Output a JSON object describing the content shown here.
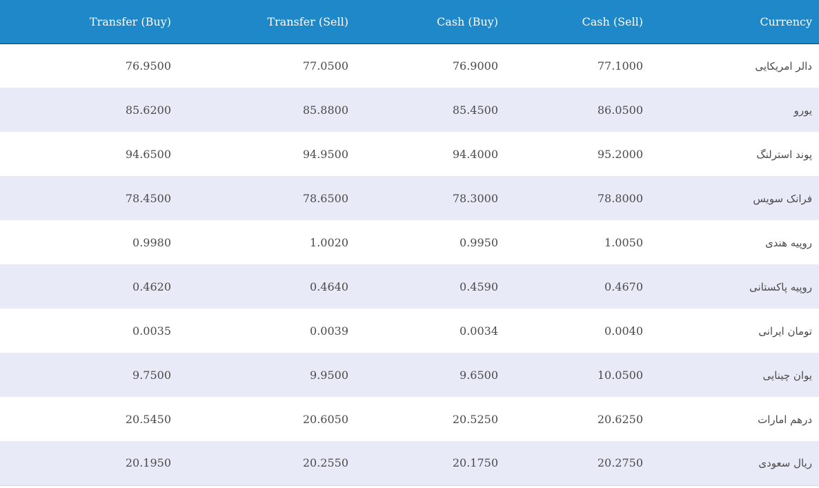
{
  "table": {
    "headers": {
      "transfer_buy": "Transfer (Buy)",
      "transfer_sell": "Transfer (Sell)",
      "cash_buy": "Cash (Buy)",
      "cash_sell": "Cash (Sell)",
      "currency": "Currency"
    },
    "rows": [
      {
        "transfer_buy": "76.9500",
        "transfer_sell": "77.0500",
        "cash_buy": "76.9000",
        "cash_sell": "77.1000",
        "currency": "دالر امریکایی"
      },
      {
        "transfer_buy": "85.6200",
        "transfer_sell": "85.8800",
        "cash_buy": "85.4500",
        "cash_sell": "86.0500",
        "currency": "یورو"
      },
      {
        "transfer_buy": "94.6500",
        "transfer_sell": "94.9500",
        "cash_buy": "94.4000",
        "cash_sell": "95.2000",
        "currency": "پوند استرلنگ"
      },
      {
        "transfer_buy": "78.4500",
        "transfer_sell": "78.6500",
        "cash_buy": "78.3000",
        "cash_sell": "78.8000",
        "currency": "فرانک سویس"
      },
      {
        "transfer_buy": "0.9980",
        "transfer_sell": "1.0020",
        "cash_buy": "0.9950",
        "cash_sell": "1.0050",
        "currency": "روپیه هندی"
      },
      {
        "transfer_buy": "0.4620",
        "transfer_sell": "0.4640",
        "cash_buy": "0.4590",
        "cash_sell": "0.4670",
        "currency": "روپیه پاکستانی"
      },
      {
        "transfer_buy": "0.0035",
        "transfer_sell": "0.0039",
        "cash_buy": "0.0034",
        "cash_sell": "0.0040",
        "currency": "تومان ایرانی"
      },
      {
        "transfer_buy": "9.7500",
        "transfer_sell": "9.9500",
        "cash_buy": "9.6500",
        "cash_sell": "10.0500",
        "currency": "یوان چینایی"
      },
      {
        "transfer_buy": "20.5450",
        "transfer_sell": "20.6050",
        "cash_buy": "20.5250",
        "cash_sell": "20.6250",
        "currency": "درهم امارات"
      },
      {
        "transfer_buy": "20.1950",
        "transfer_sell": "20.2550",
        "cash_buy": "20.1750",
        "cash_sell": "20.2750",
        "currency": "ریال سعودی"
      }
    ]
  },
  "colors": {
    "header_bg": "#1e88c8",
    "header_text": "#ffffff",
    "row_alt_bg": "#e8eaf8",
    "row_bg": "#ffffff",
    "text": "#4a4a4a"
  }
}
